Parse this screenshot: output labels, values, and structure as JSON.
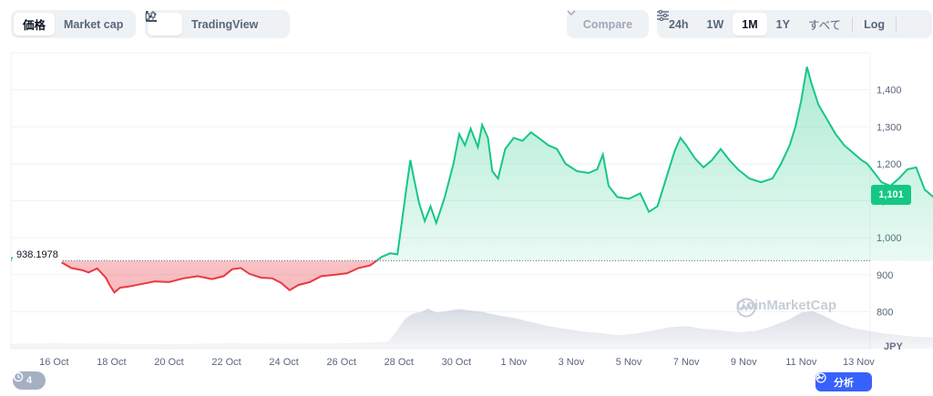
{
  "toolbar": {
    "left_tabs": [
      {
        "label": "価格",
        "active": true
      },
      {
        "label": "Market cap",
        "active": false
      }
    ],
    "view": {
      "line_icon": "line-chart-icon",
      "tradingview_label": "TradingView",
      "tradingview_icon": "candlestick-icon"
    },
    "compare_label": "Compare",
    "ranges": [
      {
        "label": "24h",
        "active": false
      },
      {
        "label": "1W",
        "active": false
      },
      {
        "label": "1M",
        "active": true
      },
      {
        "label": "1Y",
        "active": false
      },
      {
        "label": "すべて",
        "active": false
      }
    ],
    "log_label": "Log",
    "settings_icon": "settings-sliders-icon"
  },
  "chart_data": {
    "type": "area",
    "currency": "JPY",
    "ylim": [
      700,
      1500
    ],
    "yticks": [
      800,
      900,
      1000,
      1100,
      1200,
      1300,
      1400
    ],
    "ytick_labels": [
      "800",
      "900",
      "1,000",
      "1,100",
      "1,200",
      "1,300",
      "1,400"
    ],
    "x_labels": [
      "16 Oct",
      "18 Oct",
      "20 Oct",
      "22 Oct",
      "24 Oct",
      "26 Oct",
      "28 Oct",
      "30 Oct",
      "1 Nov",
      "3 Nov",
      "5 Nov",
      "7 Nov",
      "9 Nov",
      "11 Nov",
      "13 Nov"
    ],
    "x_range_days": [
      14.5,
      44.4
    ],
    "baseline": 938.1978,
    "baseline_label": "938.1978",
    "current_price_label": "1,101",
    "up_color": "#16c784",
    "down_color": "#ea3943",
    "price": [
      [
        14.5,
        945
      ],
      [
        15.3,
        946
      ],
      [
        15.9,
        941
      ],
      [
        16.2,
        936
      ],
      [
        16.6,
        918
      ],
      [
        17.0,
        912
      ],
      [
        17.2,
        906
      ],
      [
        17.5,
        917
      ],
      [
        17.8,
        892
      ],
      [
        17.95,
        870
      ],
      [
        18.1,
        852
      ],
      [
        18.3,
        865
      ],
      [
        18.6,
        868
      ],
      [
        19.0,
        874
      ],
      [
        19.5,
        882
      ],
      [
        20.0,
        880
      ],
      [
        20.5,
        890
      ],
      [
        21.0,
        896
      ],
      [
        21.5,
        888
      ],
      [
        21.9,
        896
      ],
      [
        22.2,
        915
      ],
      [
        22.5,
        918
      ],
      [
        22.8,
        902
      ],
      [
        23.2,
        892
      ],
      [
        23.6,
        890
      ],
      [
        23.9,
        878
      ],
      [
        24.2,
        858
      ],
      [
        24.5,
        872
      ],
      [
        24.9,
        880
      ],
      [
        25.3,
        896
      ],
      [
        25.8,
        900
      ],
      [
        26.2,
        904
      ],
      [
        26.6,
        918
      ],
      [
        27.0,
        925
      ],
      [
        27.2,
        936
      ],
      [
        27.4,
        948
      ],
      [
        27.7,
        958
      ],
      [
        27.95,
        955
      ],
      [
        28.1,
        1040
      ],
      [
        28.3,
        1155
      ],
      [
        28.4,
        1210
      ],
      [
        28.5,
        1170
      ],
      [
        28.7,
        1095
      ],
      [
        28.9,
        1045
      ],
      [
        29.1,
        1085
      ],
      [
        29.3,
        1040
      ],
      [
        29.6,
        1110
      ],
      [
        29.9,
        1200
      ],
      [
        30.1,
        1280
      ],
      [
        30.3,
        1250
      ],
      [
        30.5,
        1295
      ],
      [
        30.75,
        1245
      ],
      [
        30.9,
        1305
      ],
      [
        31.1,
        1270
      ],
      [
        31.25,
        1180
      ],
      [
        31.45,
        1160
      ],
      [
        31.7,
        1240
      ],
      [
        32.0,
        1270
      ],
      [
        32.3,
        1262
      ],
      [
        32.6,
        1285
      ],
      [
        32.9,
        1268
      ],
      [
        33.2,
        1250
      ],
      [
        33.5,
        1240
      ],
      [
        33.8,
        1200
      ],
      [
        34.2,
        1180
      ],
      [
        34.6,
        1175
      ],
      [
        34.9,
        1185
      ],
      [
        35.1,
        1225
      ],
      [
        35.3,
        1140
      ],
      [
        35.6,
        1110
      ],
      [
        36.0,
        1105
      ],
      [
        36.4,
        1120
      ],
      [
        36.7,
        1070
      ],
      [
        37.0,
        1085
      ],
      [
        37.3,
        1160
      ],
      [
        37.6,
        1235
      ],
      [
        37.8,
        1270
      ],
      [
        38.0,
        1250
      ],
      [
        38.3,
        1215
      ],
      [
        38.6,
        1190
      ],
      [
        38.9,
        1210
      ],
      [
        39.2,
        1240
      ],
      [
        39.5,
        1210
      ],
      [
        39.8,
        1185
      ],
      [
        40.2,
        1160
      ],
      [
        40.6,
        1150
      ],
      [
        41.0,
        1160
      ],
      [
        41.3,
        1200
      ],
      [
        41.6,
        1250
      ],
      [
        41.8,
        1300
      ],
      [
        42.0,
        1370
      ],
      [
        42.2,
        1462
      ],
      [
        42.35,
        1420
      ],
      [
        42.6,
        1360
      ],
      [
        42.9,
        1320
      ],
      [
        43.2,
        1280
      ],
      [
        43.5,
        1250
      ],
      [
        43.8,
        1230
      ],
      [
        44.1,
        1210
      ],
      [
        44.3,
        1200
      ],
      [
        44.5,
        1180
      ],
      [
        44.8,
        1150
      ],
      [
        45.1,
        1140
      ],
      [
        45.4,
        1160
      ],
      [
        45.7,
        1185
      ],
      [
        46.0,
        1190
      ],
      [
        46.3,
        1130
      ],
      [
        46.6,
        1110
      ],
      [
        46.9,
        1101
      ]
    ],
    "volume": [
      [
        14.5,
        0.12
      ],
      [
        16.0,
        0.13
      ],
      [
        18.0,
        0.12
      ],
      [
        20.0,
        0.11
      ],
      [
        22.0,
        0.13
      ],
      [
        24.0,
        0.12
      ],
      [
        26.0,
        0.13
      ],
      [
        27.6,
        0.16
      ],
      [
        27.9,
        0.4
      ],
      [
        28.2,
        0.72
      ],
      [
        28.5,
        0.86
      ],
      [
        28.8,
        0.9
      ],
      [
        29.0,
        0.98
      ],
      [
        29.3,
        0.88
      ],
      [
        29.7,
        0.92
      ],
      [
        30.1,
        0.97
      ],
      [
        30.5,
        0.93
      ],
      [
        30.9,
        0.9
      ],
      [
        31.4,
        0.82
      ],
      [
        32.0,
        0.75
      ],
      [
        32.6,
        0.65
      ],
      [
        33.2,
        0.55
      ],
      [
        33.8,
        0.48
      ],
      [
        34.4,
        0.42
      ],
      [
        35.0,
        0.38
      ],
      [
        35.6,
        0.33
      ],
      [
        36.2,
        0.36
      ],
      [
        36.8,
        0.44
      ],
      [
        37.4,
        0.52
      ],
      [
        38.0,
        0.55
      ],
      [
        38.6,
        0.48
      ],
      [
        39.2,
        0.45
      ],
      [
        39.8,
        0.4
      ],
      [
        40.4,
        0.43
      ],
      [
        41.0,
        0.55
      ],
      [
        41.6,
        0.72
      ],
      [
        42.0,
        0.88
      ],
      [
        42.4,
        0.92
      ],
      [
        42.8,
        0.8
      ],
      [
        43.3,
        0.62
      ],
      [
        43.8,
        0.5
      ],
      [
        44.3,
        0.44
      ],
      [
        44.8,
        0.38
      ],
      [
        45.3,
        0.34
      ],
      [
        45.8,
        0.3
      ],
      [
        46.3,
        0.28
      ],
      [
        46.9,
        0.27
      ]
    ]
  },
  "watermark": {
    "text": "CoinMarketCap",
    "icon": "coinmarketcap-logo-icon"
  },
  "history_badge": {
    "count": "4",
    "icon": "history-icon"
  },
  "analysis_button": {
    "label": "分析",
    "icon": "analysis-icon",
    "chevron": "chevron-right-icon"
  }
}
